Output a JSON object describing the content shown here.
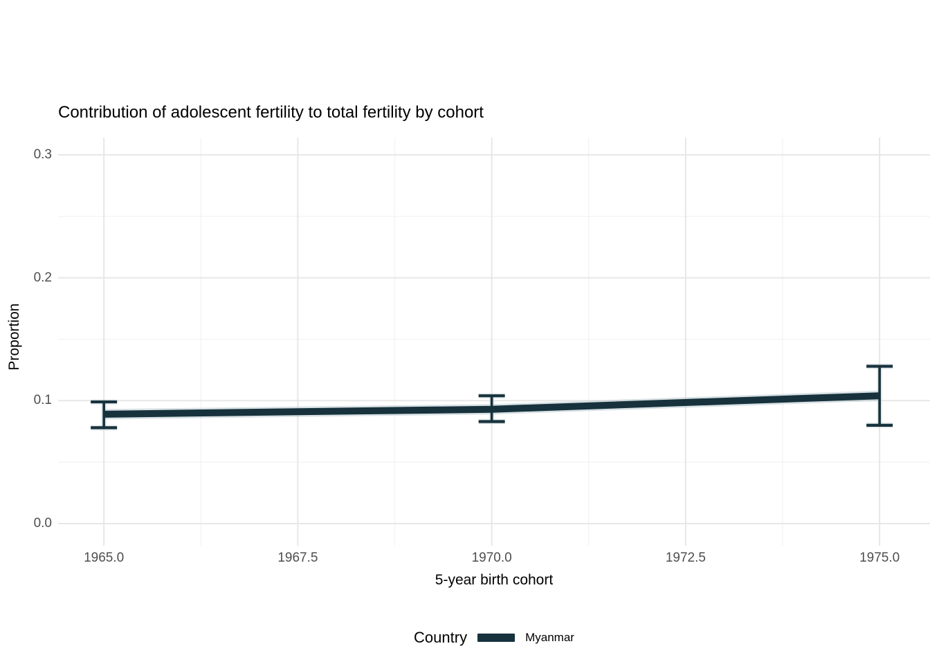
{
  "chart_data": {
    "type": "line",
    "title": "Contribution of adolescent fertility to total fertility by cohort",
    "xlabel": "5-year birth cohort",
    "ylabel": "Proportion",
    "xlim": [
      1964.41,
      1975.65
    ],
    "ylim": [
      -0.018,
      0.314
    ],
    "grid": "major+minor, no axis ticks, minimal theme",
    "x_ticks": [
      {
        "value": 1965.0,
        "label": "1965.0"
      },
      {
        "value": 1967.5,
        "label": "1967.5"
      },
      {
        "value": 1970.0,
        "label": "1970.0"
      },
      {
        "value": 1972.5,
        "label": "1972.5"
      },
      {
        "value": 1975.0,
        "label": "1975.0"
      }
    ],
    "y_ticks": [
      {
        "value": 0.3,
        "label": "0.3"
      },
      {
        "value": 0.2,
        "label": "0.2"
      },
      {
        "value": 0.1,
        "label": "0.1"
      },
      {
        "value": 0.0,
        "label": "0.0"
      }
    ],
    "x_minor": [
      1966.25,
      1968.75,
      1971.25,
      1973.75
    ],
    "y_minor": [
      0.05,
      0.15,
      0.25
    ],
    "legend": {
      "title": "Country",
      "position": "bottom",
      "entries": [
        {
          "label": "Myanmar",
          "color": "#17323d"
        }
      ]
    },
    "series": [
      {
        "name": "Myanmar",
        "color": "#17323d",
        "halo_color": "#a9bcc3",
        "points": [
          {
            "x": 1965,
            "y": 0.089,
            "ci_low": 0.078,
            "ci_high": 0.099
          },
          {
            "x": 1970,
            "y": 0.093,
            "ci_low": 0.083,
            "ci_high": 0.104
          },
          {
            "x": 1975,
            "y": 0.104,
            "ci_low": 0.08,
            "ci_high": 0.128
          }
        ]
      }
    ],
    "colors": {
      "background": "#ffffff",
      "grid_major": "#e7e7e7",
      "grid_minor": "#f2f2f2",
      "tick_text": "#4d4d4d",
      "text": "#000000"
    }
  }
}
